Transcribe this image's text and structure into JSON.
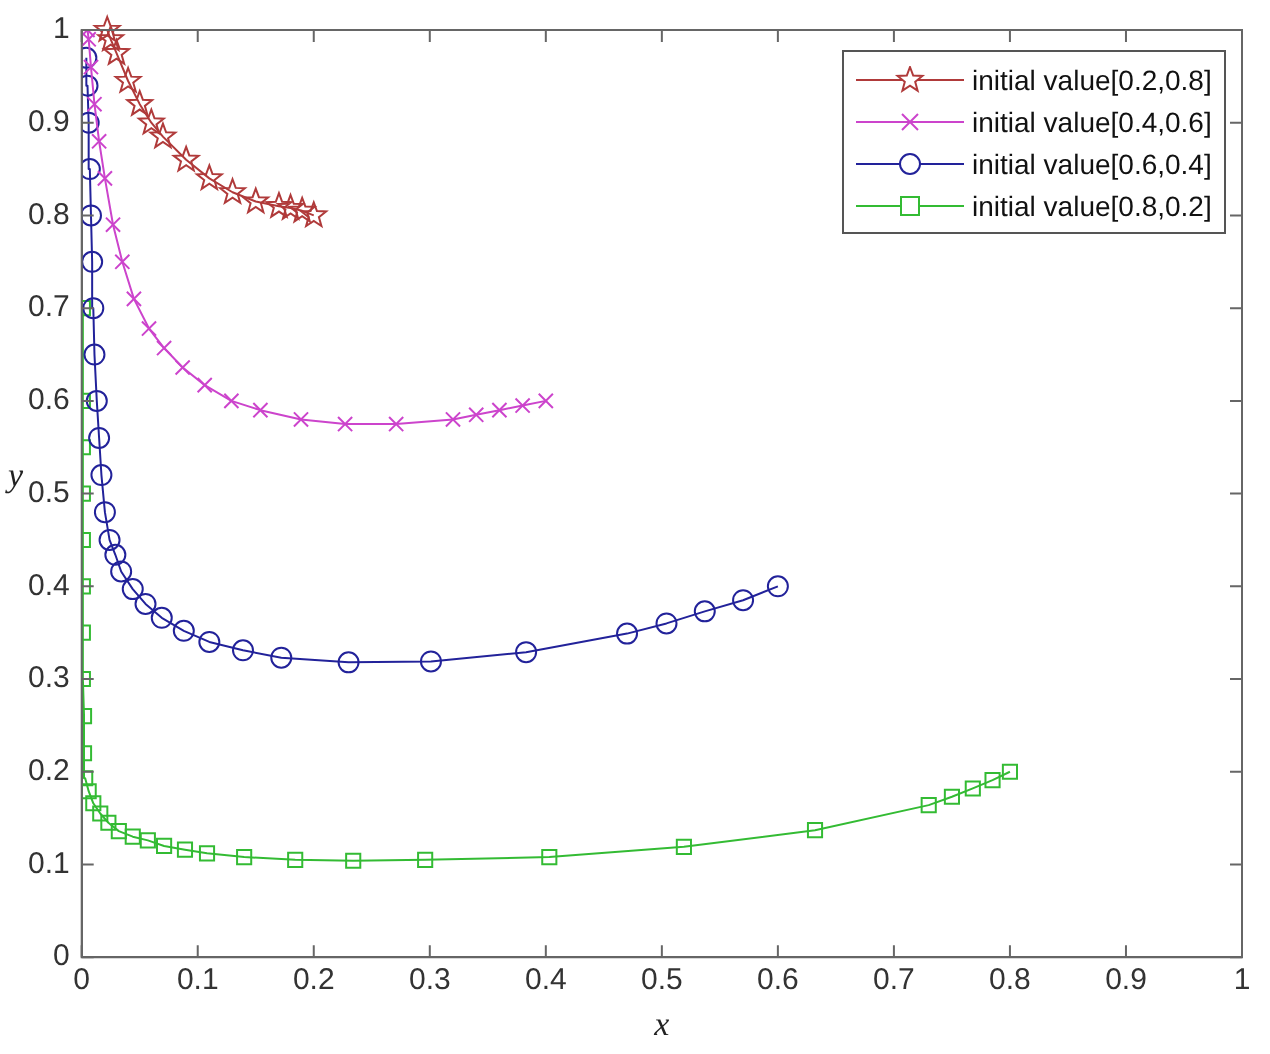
{
  "chart_data": {
    "type": "line",
    "xlabel": "x",
    "ylabel": "y",
    "xlim": [
      0,
      1
    ],
    "ylim": [
      0,
      1
    ],
    "xticks": [
      0,
      0.1,
      0.2,
      0.3,
      0.4,
      0.5,
      0.6,
      0.7,
      0.8,
      0.9,
      1
    ],
    "yticks": [
      0,
      0.1,
      0.2,
      0.3,
      0.4,
      0.5,
      0.6,
      0.7,
      0.8,
      0.9,
      1
    ],
    "grid": false,
    "legend": "top right",
    "line_style": "solid",
    "series": [
      {
        "name": "initial value[0.2,0.8]",
        "color": "#b03a3a",
        "marker": "star",
        "x": [
          0.2,
          0.19,
          0.18,
          0.17,
          0.15,
          0.13,
          0.11,
          0.09,
          0.07,
          0.06,
          0.05,
          0.04,
          0.03,
          0.025,
          0.022
        ],
        "values": [
          0.8,
          0.805,
          0.808,
          0.81,
          0.815,
          0.825,
          0.84,
          0.86,
          0.885,
          0.9,
          0.92,
          0.945,
          0.975,
          0.99,
          1.0
        ]
      },
      {
        "name": "initial value[0.4,0.6]",
        "color": "#cc44cc",
        "marker": "cross",
        "x": [
          0.4,
          0.38,
          0.36,
          0.34,
          0.32,
          0.271,
          0.227,
          0.189,
          0.154,
          0.129,
          0.106,
          0.087,
          0.071,
          0.058,
          0.045,
          0.035,
          0.027,
          0.02,
          0.015,
          0.011,
          0.008,
          0.006,
          0.005
        ],
        "values": [
          0.6,
          0.595,
          0.59,
          0.585,
          0.58,
          0.575,
          0.575,
          0.58,
          0.59,
          0.6,
          0.617,
          0.636,
          0.657,
          0.678,
          0.71,
          0.75,
          0.79,
          0.84,
          0.88,
          0.92,
          0.96,
          0.99,
          1.0
        ]
      },
      {
        "name": "initial value[0.6,0.4]",
        "color": "#22229a",
        "marker": "circle",
        "x": [
          0.6,
          0.57,
          0.537,
          0.504,
          0.47,
          0.383,
          0.301,
          0.23,
          0.172,
          0.139,
          0.11,
          0.088,
          0.069,
          0.055,
          0.044,
          0.034,
          0.029,
          0.024,
          0.02,
          0.017,
          0.015,
          0.013,
          0.011,
          0.01,
          0.009,
          0.008,
          0.007,
          0.006,
          0.005,
          0.004
        ],
        "values": [
          0.4,
          0.385,
          0.373,
          0.36,
          0.349,
          0.329,
          0.319,
          0.318,
          0.323,
          0.331,
          0.34,
          0.352,
          0.366,
          0.381,
          0.397,
          0.416,
          0.434,
          0.45,
          0.48,
          0.52,
          0.56,
          0.6,
          0.65,
          0.7,
          0.75,
          0.8,
          0.85,
          0.9,
          0.94,
          0.97
        ]
      },
      {
        "name": "initial value[0.8,0.2]",
        "color": "#33bb33",
        "marker": "square",
        "x": [
          0.8,
          0.785,
          0.768,
          0.75,
          0.73,
          0.632,
          0.519,
          0.403,
          0.296,
          0.234,
          0.184,
          0.14,
          0.108,
          0.089,
          0.071,
          0.057,
          0.044,
          0.032,
          0.023,
          0.016,
          0.01,
          0.006,
          0.003,
          0.002,
          0.002,
          0.001,
          0.001,
          0.001,
          0.001,
          0.001,
          0.001,
          0.001,
          0.001
        ],
        "values": [
          0.2,
          0.191,
          0.182,
          0.173,
          0.164,
          0.137,
          0.119,
          0.108,
          0.105,
          0.104,
          0.105,
          0.108,
          0.112,
          0.116,
          0.12,
          0.126,
          0.13,
          0.136,
          0.145,
          0.155,
          0.166,
          0.179,
          0.193,
          0.22,
          0.26,
          0.3,
          0.35,
          0.4,
          0.45,
          0.5,
          0.55,
          0.6,
          0.7
        ]
      }
    ]
  }
}
